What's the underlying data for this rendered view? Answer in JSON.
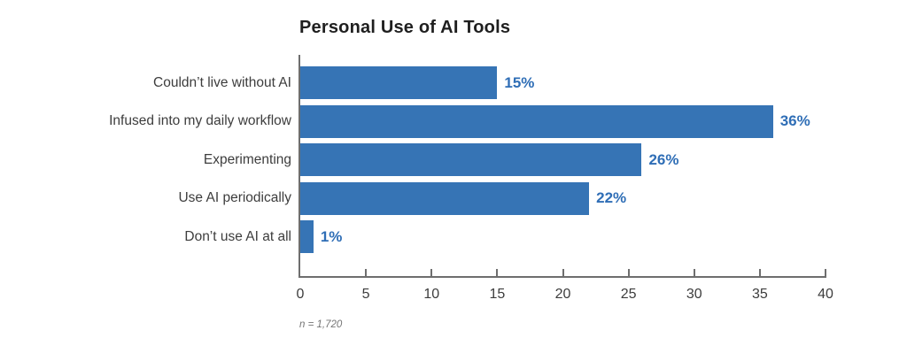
{
  "title": "Personal Use of AI Tools",
  "footnote": "n = 1,720",
  "colors": {
    "bar": "#3674B5",
    "value_label": "#2F6EB6",
    "axis": "#6E6E6E",
    "title_text": "#1F1F1F",
    "category_text": "#3D3D3D",
    "tick_text": "#3D3D3D",
    "footnote_text": "#757575",
    "background": "#FFFFFF"
  },
  "chart_data": {
    "type": "bar",
    "orientation": "horizontal",
    "title": "Personal Use of AI Tools",
    "categories": [
      "Couldn’t live without AI",
      "Infused into my daily workflow",
      "Experimenting",
      "Use AI periodically",
      "Don’t use AI at all"
    ],
    "values": [
      15,
      36,
      26,
      22,
      1
    ],
    "value_labels": [
      "15%",
      "36%",
      "26%",
      "22%",
      "1%"
    ],
    "xlabel": "",
    "ylabel": "",
    "xlim": [
      0,
      40
    ],
    "x_ticks": [
      0,
      5,
      10,
      15,
      20,
      25,
      30,
      35,
      40
    ],
    "grid": false,
    "legend": false,
    "note": "n = 1,720"
  }
}
